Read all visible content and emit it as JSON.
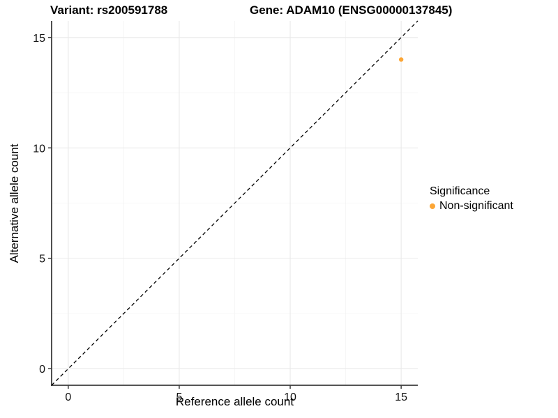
{
  "chart_data": {
    "type": "scatter",
    "title_left": "Variant: rs200591788",
    "title_right": "Gene: ADAM10 (ENSG00000137845)",
    "xlabel": "Reference allele count",
    "ylabel": "Alternative allele count",
    "xlim": [
      -0.75,
      15.75
    ],
    "ylim": [
      -0.75,
      15.75
    ],
    "x_ticks": [
      0,
      5,
      10,
      15
    ],
    "y_ticks": [
      0,
      5,
      10,
      15
    ],
    "minor_ticks": [
      2.5,
      7.5,
      12.5
    ],
    "grid": true,
    "background": "#ffffff",
    "grid_major_color": "#e9e9e9",
    "grid_minor_color": "#f4f4f4",
    "axis_color": "#3c3c3c",
    "reference_line": {
      "type": "identity-diagonal",
      "style": "dashed",
      "color": "#000000"
    },
    "series": [
      {
        "name": "Non-significant",
        "color": "#FCA636",
        "points": [
          {
            "x": 15,
            "y": 14
          }
        ]
      }
    ],
    "legend": {
      "title": "Significance",
      "position": "right",
      "items": [
        {
          "label": "Non-significant",
          "color": "#FCA636"
        }
      ]
    }
  }
}
